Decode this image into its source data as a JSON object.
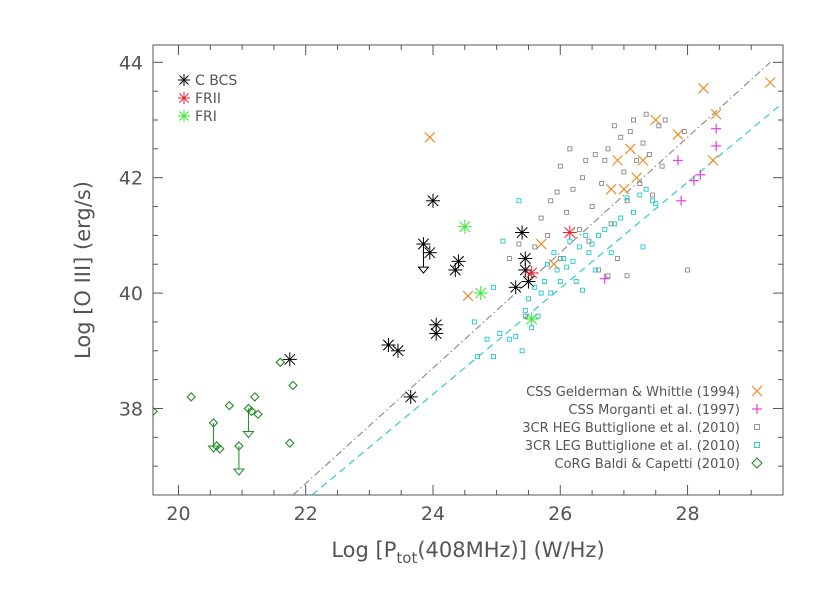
{
  "chart_data": {
    "type": "scatter",
    "xlabel_parts": [
      "Log [P",
      "tot",
      "(408MHz)] (W/Hz)"
    ],
    "ylabel": "Log [O III] (erg/s)",
    "xlim": [
      19.6,
      29.5
    ],
    "ylim": [
      36.5,
      44.3
    ],
    "x_ticks": [
      "20",
      "22",
      "24",
      "26",
      "28"
    ],
    "y_ticks": [
      "38",
      "40",
      "42",
      "44"
    ],
    "x_tick_values": [
      20,
      22,
      24,
      26,
      28
    ],
    "y_tick_values": [
      38,
      40,
      42,
      44
    ],
    "minor_x_step": 0.5,
    "minor_y_step": 0.5,
    "legend_top_left": [
      {
        "name": "C BCS",
        "color": "#000000"
      },
      {
        "name": "FRII",
        "color": "#e8232a"
      },
      {
        "name": "FRI",
        "color": "#33e633"
      }
    ],
    "legend_bottom_right": [
      {
        "name": "CSS Gelderman & Whittle (1994)",
        "color": "#f08c28",
        "marker": "x"
      },
      {
        "name": "CSS Morganti et al. (1997)",
        "color": "#e040e0",
        "marker": "plus"
      },
      {
        "name": "3CR HEG Buttiglione et al. (2010)",
        "color": "#888888",
        "marker": "square"
      },
      {
        "name": "3CR LEG Buttiglione et al. (2010)",
        "color": "#20c8c8",
        "marker": "square"
      },
      {
        "name": "CoRG Baldi & Capetti (2010)",
        "color": "#228b22",
        "marker": "diamond"
      }
    ],
    "fit_lines": [
      {
        "style": "dash-dot",
        "color": "#888888",
        "points": [
          [
            21.8,
            36.5
          ],
          [
            29.3,
            44.0
          ]
        ]
      },
      {
        "style": "dashed",
        "color": "#20c8c8",
        "points": [
          [
            22.1,
            36.5
          ],
          [
            29.5,
            43.3
          ]
        ]
      }
    ],
    "series": [
      {
        "name": "C BCS",
        "marker": "asterisk",
        "color": "#000000",
        "size": 7,
        "points": [
          [
            21.75,
            38.85
          ],
          [
            23.3,
            39.1
          ],
          [
            23.45,
            39.0
          ],
          [
            23.65,
            38.2
          ],
          [
            23.85,
            40.85
          ],
          [
            23.95,
            40.7
          ],
          [
            24.0,
            41.6
          ],
          [
            24.05,
            39.45
          ],
          [
            24.05,
            39.3
          ],
          [
            24.35,
            40.4
          ],
          [
            24.4,
            40.55
          ],
          [
            25.3,
            40.1
          ],
          [
            25.4,
            41.05
          ],
          [
            25.45,
            40.6
          ],
          [
            25.45,
            40.4
          ],
          [
            25.5,
            40.2
          ]
        ]
      },
      {
        "name": "FRII",
        "marker": "asterisk",
        "color": "#e8232a",
        "size": 7,
        "points": [
          [
            25.55,
            40.35
          ],
          [
            26.15,
            41.05
          ]
        ]
      },
      {
        "name": "FRI",
        "marker": "asterisk",
        "color": "#33e633",
        "size": 7,
        "points": [
          [
            24.5,
            41.15
          ],
          [
            24.75,
            40.0
          ],
          [
            25.55,
            39.55
          ]
        ]
      },
      {
        "name": "CSS Gelderman & Whittle (1994)",
        "marker": "x",
        "color": "#f08c28",
        "size": 5,
        "points": [
          [
            23.95,
            42.7
          ],
          [
            24.55,
            39.95
          ],
          [
            25.7,
            40.85
          ],
          [
            25.9,
            40.5
          ],
          [
            26.8,
            41.8
          ],
          [
            26.9,
            42.3
          ],
          [
            27.0,
            41.8
          ],
          [
            27.1,
            42.5
          ],
          [
            27.2,
            42.0
          ],
          [
            27.3,
            42.3
          ],
          [
            27.5,
            43.0
          ],
          [
            27.85,
            42.75
          ],
          [
            28.25,
            43.55
          ],
          [
            28.4,
            42.3
          ],
          [
            28.45,
            43.1
          ],
          [
            29.3,
            43.65
          ]
        ]
      },
      {
        "name": "CSS Morganti et al. (1997)",
        "marker": "plus",
        "color": "#e040e0",
        "size": 5,
        "points": [
          [
            26.7,
            40.25
          ],
          [
            27.85,
            42.3
          ],
          [
            27.9,
            41.6
          ],
          [
            28.1,
            41.95
          ],
          [
            28.2,
            42.05
          ],
          [
            28.45,
            42.85
          ],
          [
            28.45,
            42.55
          ]
        ]
      },
      {
        "name": "3CR HEG Buttiglione et al. (2010)",
        "marker": "square",
        "color": "#888888",
        "size": 2,
        "points": [
          [
            25.2,
            40.6
          ],
          [
            25.35,
            40.85
          ],
          [
            25.45,
            39.6
          ],
          [
            25.6,
            40.8
          ],
          [
            25.7,
            41.3
          ],
          [
            25.8,
            41.0
          ],
          [
            25.85,
            41.6
          ],
          [
            25.95,
            41.75
          ],
          [
            26.0,
            40.6
          ],
          [
            26.0,
            42.2
          ],
          [
            26.1,
            41.4
          ],
          [
            26.15,
            42.5
          ],
          [
            26.2,
            41.8
          ],
          [
            26.3,
            41.1
          ],
          [
            26.35,
            42.0
          ],
          [
            26.4,
            42.3
          ],
          [
            26.45,
            40.9
          ],
          [
            26.5,
            41.5
          ],
          [
            26.55,
            42.4
          ],
          [
            26.6,
            40.4
          ],
          [
            26.65,
            41.9
          ],
          [
            26.7,
            42.3
          ],
          [
            26.75,
            42.5
          ],
          [
            26.8,
            41.2
          ],
          [
            26.85,
            42.9
          ],
          [
            26.95,
            42.7
          ],
          [
            27.0,
            42.1
          ],
          [
            27.05,
            41.6
          ],
          [
            27.1,
            42.8
          ],
          [
            27.15,
            43.0
          ],
          [
            27.2,
            42.3
          ],
          [
            27.25,
            41.9
          ],
          [
            27.3,
            42.6
          ],
          [
            27.35,
            43.1
          ],
          [
            27.4,
            42.4
          ],
          [
            27.45,
            41.7
          ],
          [
            27.55,
            42.9
          ],
          [
            27.6,
            42.2
          ],
          [
            27.65,
            43.0
          ],
          [
            27.95,
            42.8
          ],
          [
            28.0,
            40.4
          ],
          [
            26.75,
            40.3
          ],
          [
            27.05,
            40.3
          ],
          [
            26.9,
            40.6
          ]
        ]
      },
      {
        "name": "3CR LEG Buttiglione et al. (2010)",
        "marker": "square",
        "color": "#20c8c8",
        "size": 2,
        "points": [
          [
            24.65,
            39.5
          ],
          [
            24.7,
            38.9
          ],
          [
            24.85,
            39.2
          ],
          [
            24.95,
            40.1
          ],
          [
            25.05,
            39.3
          ],
          [
            25.1,
            40.9
          ],
          [
            25.2,
            39.2
          ],
          [
            25.3,
            39.25
          ],
          [
            25.4,
            39.0
          ],
          [
            25.45,
            39.7
          ],
          [
            25.5,
            39.9
          ],
          [
            25.55,
            39.4
          ],
          [
            25.6,
            40.1
          ],
          [
            25.65,
            39.6
          ],
          [
            25.7,
            40.0
          ],
          [
            25.75,
            40.2
          ],
          [
            25.8,
            40.5
          ],
          [
            25.85,
            40.0
          ],
          [
            25.9,
            40.7
          ],
          [
            25.95,
            40.4
          ],
          [
            26.0,
            40.2
          ],
          [
            26.05,
            40.6
          ],
          [
            26.1,
            40.45
          ],
          [
            26.15,
            40.9
          ],
          [
            26.2,
            40.55
          ],
          [
            26.25,
            40.2
          ],
          [
            26.3,
            40.8
          ],
          [
            26.35,
            40.05
          ],
          [
            26.4,
            41.0
          ],
          [
            26.45,
            40.7
          ],
          [
            26.5,
            40.85
          ],
          [
            26.55,
            40.4
          ],
          [
            26.6,
            41.0
          ],
          [
            26.7,
            41.1
          ],
          [
            26.8,
            40.7
          ],
          [
            26.85,
            41.2
          ],
          [
            26.95,
            41.3
          ],
          [
            27.05,
            41.65
          ],
          [
            27.15,
            41.4
          ],
          [
            27.25,
            41.7
          ],
          [
            27.35,
            41.8
          ],
          [
            27.45,
            41.6
          ],
          [
            27.5,
            41.55
          ],
          [
            27.3,
            40.8
          ],
          [
            25.35,
            41.6
          ],
          [
            24.95,
            38.9
          ]
        ]
      },
      {
        "name": "CoRG Baldi & Capetti (2010)",
        "marker": "diamond",
        "color": "#228b22",
        "size": 4,
        "points": [
          [
            19.6,
            37.95
          ],
          [
            20.2,
            38.2
          ],
          [
            20.55,
            37.75
          ],
          [
            20.6,
            37.35
          ],
          [
            20.65,
            37.3
          ],
          [
            20.8,
            38.05
          ],
          [
            20.95,
            37.35
          ],
          [
            21.1,
            38.0
          ],
          [
            21.15,
            37.95
          ],
          [
            21.2,
            38.2
          ],
          [
            21.25,
            37.9
          ],
          [
            21.6,
            38.8
          ],
          [
            21.75,
            37.4
          ],
          [
            21.8,
            38.4
          ]
        ]
      }
    ],
    "upper_limits": [
      {
        "x": 23.85,
        "y_from": 40.85,
        "y_to": 40.45,
        "color": "#000000"
      },
      {
        "x": 20.55,
        "y_from": 37.75,
        "y_to": 37.35,
        "color": "#228b22"
      },
      {
        "x": 20.95,
        "y_from": 37.35,
        "y_to": 36.95,
        "color": "#228b22"
      },
      {
        "x": 21.1,
        "y_from": 38.0,
        "y_to": 37.6,
        "color": "#228b22"
      }
    ]
  }
}
